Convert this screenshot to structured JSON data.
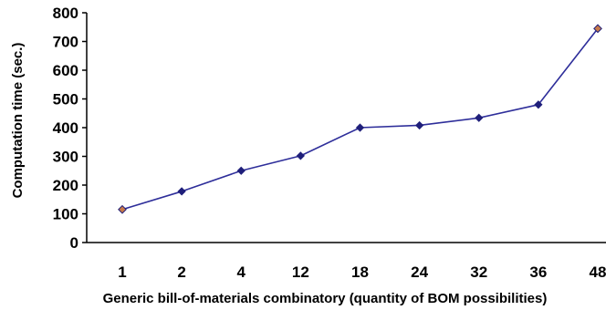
{
  "chart_data": {
    "type": "line",
    "title": "",
    "xlabel": "Generic bill-of-materials combinatory (quantity of BOM possibilities)",
    "ylabel": "Computation time  (sec.)",
    "categories": [
      "1",
      "2",
      "4",
      "12",
      "18",
      "24",
      "32",
      "36",
      "48"
    ],
    "series": [
      {
        "values": [
          115,
          178,
          250,
          302,
          400,
          408,
          434,
          480,
          745
        ],
        "line_color": "#2e2e9a",
        "marker_color": "#1f1f7a",
        "endpoint_marker_color": "#c87a4a"
      }
    ],
    "ylim": [
      0,
      800
    ],
    "yticks": [
      0,
      100,
      200,
      300,
      400,
      500,
      600,
      700,
      800
    ],
    "grid": false,
    "legend": "none"
  }
}
